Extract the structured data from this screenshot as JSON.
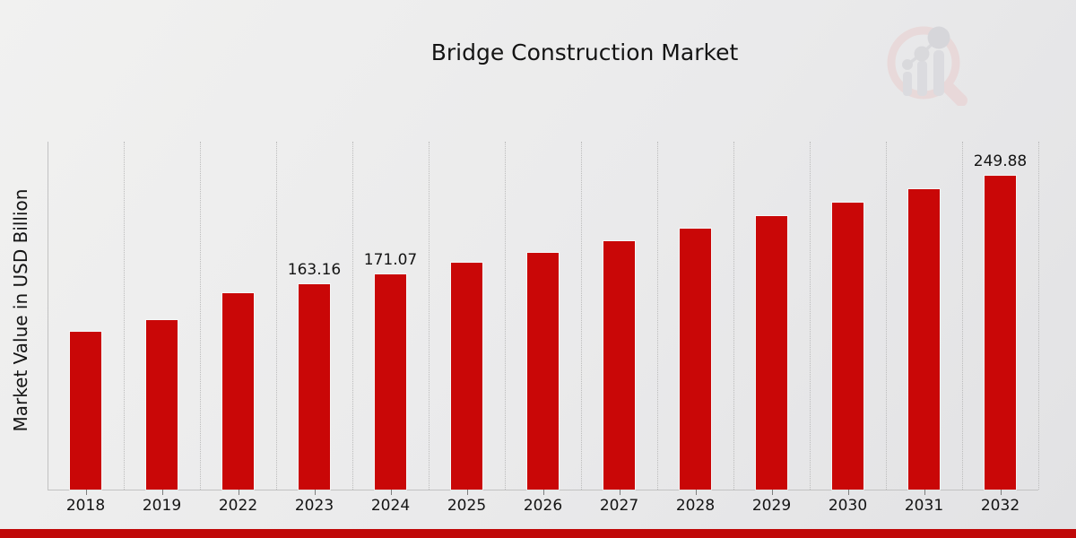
{
  "header": {
    "title": "Bridge Construction Market"
  },
  "y_axis": {
    "label": "Market Value in USD Billion"
  },
  "watermark": {
    "name": "market-research-future-logo"
  },
  "colors": {
    "bar": "#c90707",
    "bottom_strip": "#c00808",
    "gridline": "#bcbcbc",
    "axis": "#c2c2c2",
    "text": "#141414",
    "watermark_ring": "#e9cdcd",
    "watermark_gray": "#d2d2d7"
  },
  "chart_data": {
    "type": "bar",
    "title": "Bridge Construction Market",
    "xlabel": "",
    "ylabel": "Market Value in USD Billion",
    "categories": [
      "2018",
      "2019",
      "2022",
      "2023",
      "2024",
      "2025",
      "2026",
      "2027",
      "2028",
      "2029",
      "2030",
      "2031",
      "2032"
    ],
    "values": [
      125.6,
      134.9,
      156.1,
      163.16,
      171.07,
      180.4,
      188.8,
      197.9,
      207.5,
      217.6,
      228.1,
      239.2,
      249.88
    ],
    "data_labels_shown": [
      null,
      null,
      null,
      "163.16",
      "171.07",
      null,
      null,
      null,
      null,
      null,
      null,
      null,
      "249.88"
    ],
    "series_color": "#c90707",
    "ylim": [
      0,
      277
    ],
    "y_axis_ticks_visible": false,
    "grid": "vertical dotted lines at category boundaries",
    "legend": "none",
    "note_unlabeled_values": "estimated from bar heights"
  }
}
